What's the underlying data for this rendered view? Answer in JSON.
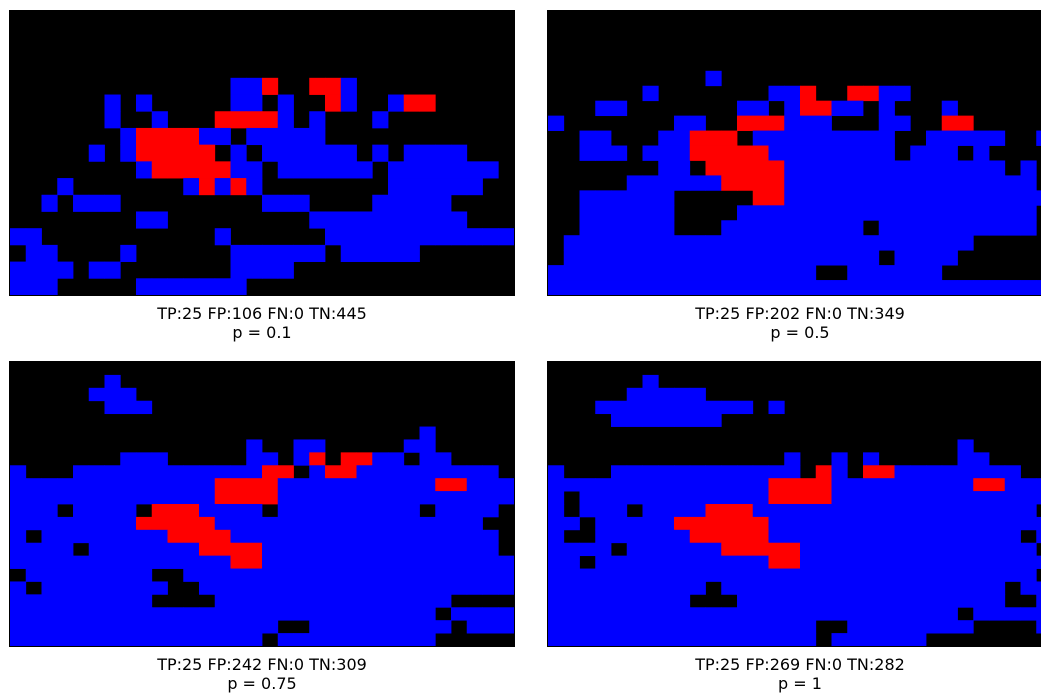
{
  "colors": {
    "tp": "#ff0000",
    "fp": "#0000ff",
    "background": "#000000"
  },
  "panels": [
    {
      "stats": "TP:25 FP:106 FN:0 TN:445",
      "label": "p = 0.1",
      "rows": [
        "................................",
        "................................",
        "................................",
        "................................",
        "..............BBR..RRB..........",
        "......B.B.....BB.B..RB..BRR.....",
        "......B..B...RRRRB.B...B........",
        ".......BRRRRBB.BBBBB............",
        ".....B.BRRRRR.B.BBBBBB.B.BBBB...",
        "........BRRRRRBB.BBBBBB.BBBBBBB.",
        "...B.......BRBRB........BBBBBB..",
        "..B.BBB.........BBB....BBBBB....",
        "........BB.........BBBBBBBBBB...",
        "BB...........B......BBBBBBBBBBBB",
        ".BB....B......BBBBBB.BBBBB......",
        "BBBB.BB.......BBBB..............",
        "BBB.....BBBBBBB................."
      ]
    },
    {
      "stats": "TP:25 FP:202 FN:0 TN:349",
      "label": "p = 0.5",
      "rows": [
        "................................",
        "................................",
        "................................",
        "................................",
        "..........B.....................",
        "......B.......BBR..RRBB.........",
        "...BB.......BB.BRRBB.B...B......",
        "B.......BB..RRRBBB...BB..RR.....",
        "..BB...BBRRR.BBBBBBBBB..BBBBB..B",
        "..BBB.BBBRRRRRBBBBBBBB.BBB.B....",
        ".......BB.RRRRRBBBBBBBBBBBBBB.B.",
        ".....BBBBBBRRRRBBBBBBBBBBBBBBBB.",
        "..BBBBBB.....RRBBBBBBBBBBBBBBBBB",
        "..BBBBBB....BBBBBBBBBBBBBBBBBBB.",
        "..BBBBBB...BBBBBBBBB.BBBBBBBBBB.",
        ".BBBBBBBBBBBBBBBBBBBBBBBBBB.....",
        ".BBBBBBBBBBBBBBBBBBBB.BBBB......",
        "BBBBBBBBBBBBBBBBB..BBBBBB.......",
        "BBBBBBBBBBBBBBBBBBBBBBBBBBBBBBBB"
      ]
    },
    {
      "stats": "TP:25 FP:242 FN:0 TN:309",
      "label": "p = 0.75",
      "rows": [
        "................................",
        "......B.........................",
        ".....BBB........................",
        "......BBB.......................",
        "................................",
        "..........................B.....",
        "...............B..BB.....BB......",
        ".......BBB.....BB.BR.RRBB.BB.....",
        "B...BBBBBBBBBBBBRR.BRRBBBBBBBBB..",
        "BBBBBBBBBBBBBRRRRBBBBBBBBBBRRBBB.",
        "BBBBBBBBBBBBBRRRRBBBBBBBBBBBBBBBB",
        "BBB.BBBB.RRRBBBB.BBBBBBBBB.BBBB.B",
        "BBBBBBBBRRRRRBBBBBBBBBBBBBBBBB..B",
        "B.BBBBBBBBRRRRBBBBBBBBBBBBBBBBB.B",
        "BBBB.BBBBBBBRRRRBBBBBBBBBBBBBBB..",
        "BBBBBBBBBBBBBBRRBBBBBBBBBBBBBBBBB",
        ".BBBBBBBB..BBBBBBBBBBBBBBBBBBBBBB",
        "B.BBBBBBBB..BBBBBBBBBBBBBBBBBBBB.",
        "BBBBBBBBB....BBBBBBBBBBBBBBB.....",
        "BBBBBBBBBBBBBBBBBBBBBBBBBBB.BBBB.",
        "BBBBBBBBBBBBBBBBB..BBBBBBBBB.BBBB",
        "BBBBBBBBBBBBBBBB.BBBBBBBBBB......"
      ]
    },
    {
      "stats": "TP:25 FP:269 FN:0 TN:282",
      "label": "p = 1",
      "rows": [
        "................................",
        "......B.........................",
        ".....BBBBB.......................",
        "...BBBBBBBBBB.B..................",
        "....BBBBBBB.......................",
        "................................",
        "..........................B.....",
        "...............B..B.B.....BB.....",
        "B...BBBBBBBBBBBB.RB.RRBBBBBBBB....",
        "BBBBBBBBBBBBBBRRRRBBBBBBBBBRRBBBB",
        "B.BBBBBBBBBBBBRRRRBBBBBBBBBBBBBBB",
        "B.BBB.BBBBRRRBBBBBBBBBBBBBBBBBB..",
        "BB.BBBBBRRRRRRBBBBBBBBBBBBBBBBBBB",
        "B..BBBBBBRRRRRBBBBBBBBBBBBBBBB.BB",
        "BBBB.BBBBBBRRRRRBBBBBBBBBBBBBBB.B",
        "BB.BBBBBBBBBBBRRBBBBBBBBBBBBBBBBB",
        "BBBBBBBBBBBBBBBBBBBBBBBBBBBBBBB..",
        "BBBBBBBBBB.BBBBBBBBBBBBBBBBBB.BBB",
        "BBBBBBBBB...BBBBBBBBBBBBBBBBB..B.",
        "BBBBBBBBBBBBBBBBBBBBBBBBBB.BBBBB.",
        "BBBBBBBBBBBBBBBBB..BBBBBBBB....BB",
        "BBBBBBBBBBBBBBBBB.BBBBBB........B"
      ]
    }
  ]
}
